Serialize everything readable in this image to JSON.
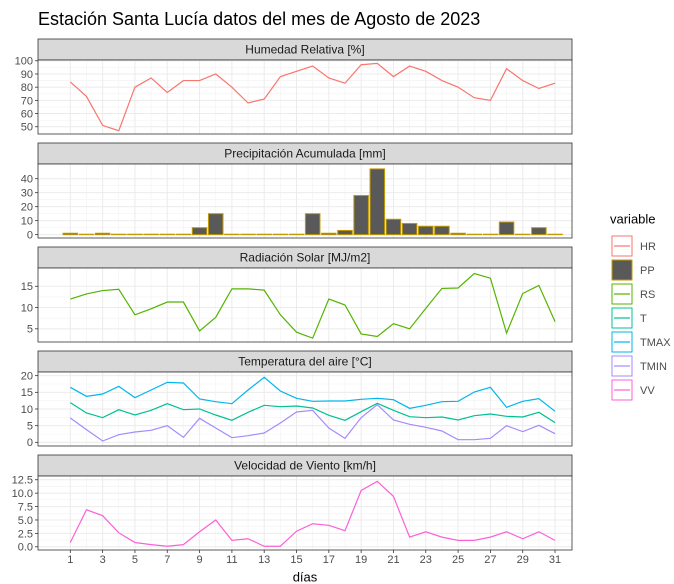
{
  "title": "Estación Santa Lucía datos del mes de Agosto de 2023",
  "x_label": "días",
  "legend_title": "variable",
  "x": [
    1,
    2,
    3,
    4,
    5,
    6,
    7,
    8,
    9,
    10,
    11,
    12,
    13,
    14,
    15,
    16,
    17,
    18,
    19,
    20,
    21,
    22,
    23,
    24,
    25,
    26,
    27,
    28,
    29,
    30,
    31
  ],
  "xlim": [
    -1,
    32.05
  ],
  "xticks": [
    1,
    3,
    5,
    7,
    9,
    11,
    13,
    15,
    17,
    19,
    21,
    23,
    25,
    27,
    29,
    31
  ],
  "grid": true,
  "chart_data": [
    {
      "type": "line",
      "title": "Humedad Relativa [%]",
      "ylim": [
        44.5,
        100.6
      ],
      "yticks": [
        50,
        60,
        70,
        80,
        90,
        100
      ],
      "series": [
        {
          "name": "HR",
          "color": "#F8766D",
          "values": [
            84,
            73,
            51,
            47,
            80,
            87,
            76,
            85,
            85,
            90,
            80,
            68,
            71,
            88,
            92,
            96,
            87,
            83,
            97,
            98,
            88,
            96,
            92,
            85,
            80,
            72,
            70,
            94,
            85,
            79,
            83
          ]
        }
      ]
    },
    {
      "type": "bar",
      "title": "Precipitación Acumulada [mm]",
      "ylim": [
        -2.4,
        50.5
      ],
      "yticks": [
        0,
        10,
        20,
        30,
        40
      ],
      "series": [
        {
          "name": "PP",
          "color": "#C49A00",
          "fill": "#595959",
          "values": [
            1,
            0.3,
            1,
            0.3,
            0.3,
            0.3,
            0.3,
            0.3,
            5,
            15,
            0.3,
            0.3,
            0.3,
            0.3,
            0.3,
            15,
            1,
            3,
            28,
            47,
            11,
            8,
            6,
            6,
            1,
            0.3,
            0.3,
            9,
            0.3,
            5,
            0.3
          ]
        }
      ]
    },
    {
      "type": "line",
      "title": "Radiación Solar [MJ/m2]",
      "ylim": [
        1.9,
        19.3
      ],
      "yticks": [
        5,
        10,
        15
      ],
      "series": [
        {
          "name": "RS",
          "color": "#53B400",
          "values": [
            12,
            13.2,
            14,
            14.3,
            8.3,
            9.7,
            11.3,
            11.3,
            4.5,
            7.7,
            14.4,
            14.4,
            14.1,
            8.3,
            4.2,
            2.8,
            12,
            10.6,
            3.8,
            3.2,
            6.2,
            5,
            9.8,
            14.5,
            14.6,
            18,
            16.9,
            4,
            13.3,
            15.2,
            6.7
          ]
        }
      ]
    },
    {
      "type": "line",
      "title": "Temperatura del aire [°C]",
      "ylim": [
        -1.1,
        21.1
      ],
      "yticks": [
        0,
        5,
        10,
        15,
        20
      ],
      "series": [
        {
          "name": "T",
          "color": "#00C094",
          "values": [
            11.9,
            8.8,
            7.4,
            9.8,
            8.2,
            9.6,
            11.6,
            9.8,
            10,
            8.2,
            6.6,
            9,
            11.1,
            10.7,
            10.9,
            10.3,
            8.1,
            6.6,
            9.2,
            11.7,
            9.6,
            7.7,
            7.4,
            7.6,
            6.7,
            8,
            8.5,
            7.8,
            7.6,
            9,
            5.9
          ]
        },
        {
          "name": "TMAX",
          "color": "#00B6EB",
          "values": [
            16.5,
            13.8,
            14.5,
            16.8,
            13.4,
            15.7,
            18,
            17.8,
            13,
            12.2,
            11.6,
            15.7,
            19.5,
            15.4,
            13.2,
            12.3,
            12.4,
            12.4,
            12.9,
            13.2,
            12.8,
            10.2,
            11.1,
            12.2,
            12.3,
            15.1,
            16.5,
            10.5,
            12.3,
            13.1,
            9.3
          ]
        },
        {
          "name": "TMIN",
          "color": "#A58AFF",
          "values": [
            7.3,
            3.8,
            0.4,
            2.3,
            3.1,
            3.6,
            5,
            1.5,
            7.2,
            4.3,
            1.4,
            2,
            2.8,
            5.8,
            9.1,
            9.6,
            4.3,
            1.2,
            7.4,
            11.3,
            6.7,
            5.4,
            4.5,
            3.4,
            0.8,
            0.8,
            1.2,
            5,
            3.2,
            5.1,
            2.6
          ]
        }
      ]
    },
    {
      "type": "line",
      "title": "Velocidad de Viento [km/h]",
      "ylim": [
        -0.6,
        13.2
      ],
      "yticks": [
        {
          "value": 0,
          "label": "0.0"
        },
        2.5,
        {
          "value": 5,
          "label": "5.0"
        },
        7.5,
        {
          "value": 10,
          "label": "10.0"
        },
        12.5
      ],
      "series": [
        {
          "name": "VV",
          "color": "#FB61D7",
          "values": [
            0.8,
            6.9,
            5.8,
            2.6,
            0.8,
            0.4,
            0.1,
            0.4,
            2.8,
            5,
            1.2,
            1.5,
            0.1,
            0.1,
            2.9,
            4.3,
            4,
            3,
            10.5,
            12.2,
            9.4,
            1.8,
            2.8,
            1.8,
            1.2,
            1.2,
            1.8,
            2.8,
            1.5,
            2.8,
            1.2
          ]
        }
      ]
    }
  ]
}
